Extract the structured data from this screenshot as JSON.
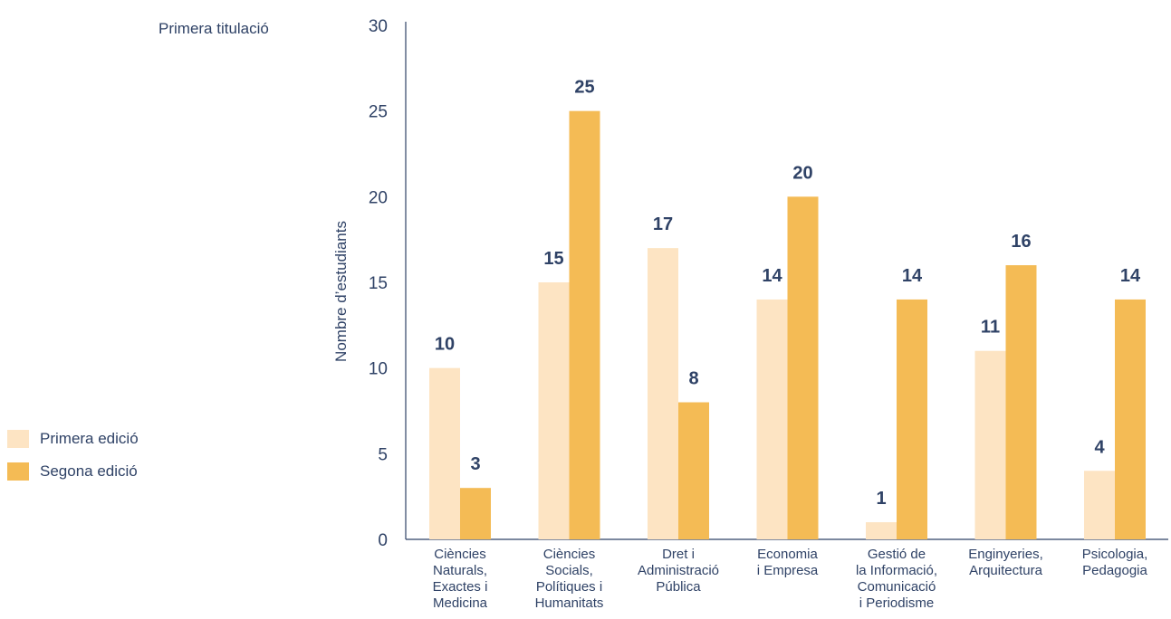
{
  "chart_data": {
    "type": "bar",
    "title": "Primera titulació",
    "xlabel": "",
    "ylabel": "Nombre d’estudiants",
    "ylim": [
      0,
      30
    ],
    "yticks": [
      0,
      5,
      10,
      15,
      20,
      25,
      30
    ],
    "grid": false,
    "legend_position": "left",
    "categories": [
      [
        "Ciències",
        "Naturals,",
        "Exactes i",
        "Medicina"
      ],
      [
        "Ciències",
        "Socials,",
        "Polítiques i",
        "Humanitats"
      ],
      [
        "Dret i",
        "Administració",
        "Pública"
      ],
      [
        "Economia",
        "i Empresa"
      ],
      [
        "Gestió de",
        "la Informació,",
        "Comunicació",
        "i Periodisme"
      ],
      [
        "Enginyeries,",
        "Arquitectura"
      ],
      [
        "Psicologia,",
        "Pedagogia"
      ]
    ],
    "series": [
      {
        "name": "Primera edició",
        "color": "#fde4c3",
        "values": [
          10,
          15,
          17,
          14,
          1,
          11,
          4
        ]
      },
      {
        "name": "Segona edició",
        "color": "#f4bb55",
        "values": [
          3,
          25,
          8,
          20,
          14,
          16,
          14
        ]
      }
    ]
  },
  "colors": {
    "axis": "#2f4266",
    "text": "#2f4266",
    "value_label": "#2f4266"
  }
}
